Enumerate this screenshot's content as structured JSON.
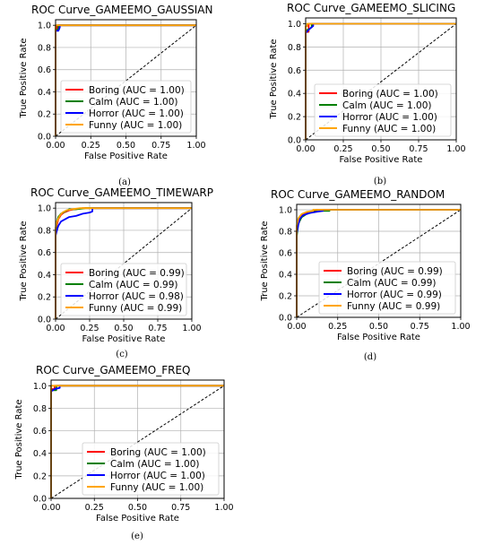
{
  "chart_data": [
    {
      "type": "line",
      "title": "ROC Curve_GAMEEMO_GAUSSIAN",
      "caption": "(a)",
      "xlabel": "False Positive Rate",
      "ylabel": "True Positive Rate",
      "xlim": [
        0,
        1
      ],
      "ylim": [
        0,
        1.05
      ],
      "xticks": [
        "0.00",
        "0.25",
        "0.50",
        "0.75",
        "1.00"
      ],
      "yticks": [
        "0.0",
        "0.2",
        "0.4",
        "0.6",
        "0.8",
        "1.0"
      ],
      "grid": true,
      "legend_position": "lower-right",
      "series": [
        {
          "name": "Boring (AUC = 1.00)",
          "color": "#ff0000",
          "x": [
            0,
            0,
            0.01,
            0.01,
            1
          ],
          "y": [
            0,
            0.97,
            0.97,
            1.0,
            1.0
          ]
        },
        {
          "name": "Calm (AUC = 1.00)",
          "color": "#008000",
          "x": [
            0,
            0,
            0.02,
            0.02,
            1
          ],
          "y": [
            0,
            0.96,
            0.96,
            1.0,
            1.0
          ]
        },
        {
          "name": "Horror (AUC = 1.00)",
          "color": "#0000ff",
          "x": [
            0,
            0,
            0.02,
            0.03,
            0.03,
            1
          ],
          "y": [
            0,
            0.95,
            0.95,
            0.98,
            1.0,
            1.0
          ]
        },
        {
          "name": "Funny (AUC = 1.00)",
          "color": "#ffa500",
          "x": [
            0,
            0,
            1
          ],
          "y": [
            0,
            1.0,
            1.0
          ]
        }
      ],
      "reference_line": {
        "x": [
          0,
          1
        ],
        "y": [
          0,
          1
        ],
        "style": "dashed"
      }
    },
    {
      "type": "line",
      "title": "ROC Curve_GAMEEMO_SLICING",
      "caption": "(b)",
      "xlabel": "False Positive Rate",
      "ylabel": "True Positive Rate",
      "xlim": [
        0,
        1
      ],
      "ylim": [
        0,
        1.05
      ],
      "xticks": [
        "0.00",
        "0.25",
        "0.50",
        "0.75",
        "1.00"
      ],
      "yticks": [
        "0.0",
        "0.2",
        "0.4",
        "0.6",
        "0.8",
        "1.0"
      ],
      "grid": true,
      "legend_position": "lower-right",
      "series": [
        {
          "name": "Boring (AUC = 1.00)",
          "color": "#ff0000",
          "x": [
            0,
            0,
            0.02,
            0.02,
            1
          ],
          "y": [
            0,
            0.93,
            0.93,
            1.0,
            1.0
          ]
        },
        {
          "name": "Calm (AUC = 1.00)",
          "color": "#008000",
          "x": [
            0,
            0,
            0.03,
            0.04,
            0.04,
            1
          ],
          "y": [
            0,
            0.94,
            0.96,
            0.97,
            1.0,
            1.0
          ]
        },
        {
          "name": "Horror (AUC = 1.00)",
          "color": "#0000ff",
          "x": [
            0,
            0,
            0.03,
            0.05,
            0.05,
            1
          ],
          "y": [
            0,
            0.92,
            0.96,
            0.98,
            1.0,
            1.0
          ]
        },
        {
          "name": "Funny (AUC = 1.00)",
          "color": "#ffa500",
          "x": [
            0,
            0,
            0.01,
            0.01,
            1
          ],
          "y": [
            0,
            0.98,
            0.98,
            1.0,
            1.0
          ]
        }
      ],
      "reference_line": {
        "x": [
          0,
          1
        ],
        "y": [
          0,
          1
        ],
        "style": "dashed"
      }
    },
    {
      "type": "line",
      "title": "ROC Curve_GAMEEMO_TIMEWARP",
      "caption": "(c)",
      "xlabel": "False Positive Rate",
      "ylabel": "True Positive Rate",
      "xlim": [
        0,
        1
      ],
      "ylim": [
        0,
        1.05
      ],
      "xticks": [
        "0.00",
        "0.25",
        "0.50",
        "0.75",
        "1.00"
      ],
      "yticks": [
        "0.0",
        "0.2",
        "0.4",
        "0.6",
        "0.8",
        "1.0"
      ],
      "grid": true,
      "legend_position": "lower-right",
      "series": [
        {
          "name": "Boring (AUC = 0.99)",
          "color": "#ff0000",
          "x": [
            0,
            0,
            0.01,
            0.02,
            0.04,
            0.06,
            0.1,
            0.14,
            0.2,
            1
          ],
          "y": [
            0,
            0.78,
            0.85,
            0.9,
            0.94,
            0.96,
            0.98,
            0.99,
            1.0,
            1.0
          ]
        },
        {
          "name": "Calm (AUC = 0.99)",
          "color": "#008000",
          "x": [
            0,
            0,
            0.01,
            0.02,
            0.04,
            0.07,
            0.1,
            0.15,
            0.22,
            1
          ],
          "y": [
            0,
            0.8,
            0.88,
            0.92,
            0.95,
            0.97,
            0.99,
            0.99,
            1.0,
            1.0
          ]
        },
        {
          "name": "Horror (AUC = 0.98)",
          "color": "#0000ff",
          "x": [
            0,
            0,
            0.01,
            0.02,
            0.04,
            0.07,
            0.1,
            0.15,
            0.2,
            0.25,
            0.27,
            0.27,
            1
          ],
          "y": [
            0,
            0.75,
            0.8,
            0.84,
            0.88,
            0.9,
            0.92,
            0.93,
            0.95,
            0.96,
            0.97,
            1.0,
            1.0
          ]
        },
        {
          "name": "Funny (AUC = 0.99)",
          "color": "#ffa500",
          "x": [
            0,
            0,
            0.01,
            0.03,
            0.05,
            0.08,
            0.12,
            0.18,
            0.22,
            1
          ],
          "y": [
            0,
            0.82,
            0.88,
            0.93,
            0.96,
            0.98,
            0.99,
            1.0,
            1.0,
            1.0
          ]
        }
      ],
      "reference_line": {
        "x": [
          0,
          1
        ],
        "y": [
          0,
          1
        ],
        "style": "dashed"
      }
    },
    {
      "type": "line",
      "title": "ROC Curve_GAMEEMO_RANDOM",
      "caption": "(d)",
      "xlabel": "False Positive Rate",
      "ylabel": "True Positive Rate",
      "xlim": [
        0,
        1
      ],
      "ylim": [
        0,
        1.05
      ],
      "xticks": [
        "0.00",
        "0.25",
        "0.50",
        "0.75",
        "1.00"
      ],
      "yticks": [
        "0.0",
        "0.2",
        "0.4",
        "0.6",
        "0.8",
        "1.0"
      ],
      "grid": true,
      "legend_position": "lower-right",
      "series": [
        {
          "name": "Boring (AUC = 0.99)",
          "color": "#ff0000",
          "x": [
            0,
            0,
            0.01,
            0.02,
            0.05,
            0.08,
            0.12,
            0.12,
            1
          ],
          "y": [
            0,
            0.8,
            0.9,
            0.94,
            0.97,
            0.98,
            0.99,
            1.0,
            1.0
          ]
        },
        {
          "name": "Calm (AUC = 0.99)",
          "color": "#008000",
          "x": [
            0,
            0,
            0.01,
            0.03,
            0.06,
            0.1,
            0.15,
            0.2,
            0.2,
            1
          ],
          "y": [
            0,
            0.75,
            0.87,
            0.93,
            0.96,
            0.98,
            0.99,
            0.99,
            1.0,
            1.0
          ]
        },
        {
          "name": "Horror (AUC = 0.99)",
          "color": "#0000ff",
          "x": [
            0,
            0,
            0.01,
            0.02,
            0.04,
            0.08,
            0.12,
            0.16,
            0.16,
            1
          ],
          "y": [
            0,
            0.78,
            0.86,
            0.92,
            0.95,
            0.97,
            0.98,
            0.99,
            1.0,
            1.0
          ]
        },
        {
          "name": "Funny (AUC = 0.99)",
          "color": "#ffa500",
          "x": [
            0,
            0,
            0.01,
            0.03,
            0.06,
            0.1,
            0.1,
            1
          ],
          "y": [
            0,
            0.85,
            0.92,
            0.96,
            0.98,
            0.99,
            1.0,
            1.0
          ]
        }
      ],
      "reference_line": {
        "x": [
          0,
          1
        ],
        "y": [
          0,
          1
        ],
        "style": "dashed"
      }
    },
    {
      "type": "line",
      "title": "ROC Curve_GAMEEMO_FREQ",
      "caption": "(e)",
      "xlabel": "False Positive Rate",
      "ylabel": "True Positive Rate",
      "xlim": [
        0,
        1
      ],
      "ylim": [
        0,
        1.05
      ],
      "xticks": [
        "0.00",
        "0.25",
        "0.50",
        "0.75",
        "1.00"
      ],
      "yticks": [
        "0.0",
        "0.2",
        "0.4",
        "0.6",
        "0.8",
        "1.0"
      ],
      "grid": true,
      "legend_position": "lower-right",
      "series": [
        {
          "name": "Boring (AUC = 1.00)",
          "color": "#ff0000",
          "x": [
            0,
            0,
            0.02,
            0.02,
            1
          ],
          "y": [
            0,
            0.97,
            0.97,
            1.0,
            1.0
          ]
        },
        {
          "name": "Calm (AUC = 1.00)",
          "color": "#008000",
          "x": [
            0,
            0,
            0.03,
            0.03,
            1
          ],
          "y": [
            0,
            0.96,
            0.96,
            1.0,
            1.0
          ]
        },
        {
          "name": "Horror (AUC = 1.00)",
          "color": "#0000ff",
          "x": [
            0,
            0,
            0.02,
            0.05,
            0.05,
            1
          ],
          "y": [
            0,
            0.95,
            0.97,
            0.98,
            1.0,
            1.0
          ]
        },
        {
          "name": "Funny (AUC = 1.00)",
          "color": "#ffa500",
          "x": [
            0,
            0,
            1
          ],
          "y": [
            0,
            1.0,
            1.0
          ]
        }
      ],
      "reference_line": {
        "x": [
          0,
          1
        ],
        "y": [
          0,
          1
        ],
        "style": "dashed"
      }
    }
  ]
}
